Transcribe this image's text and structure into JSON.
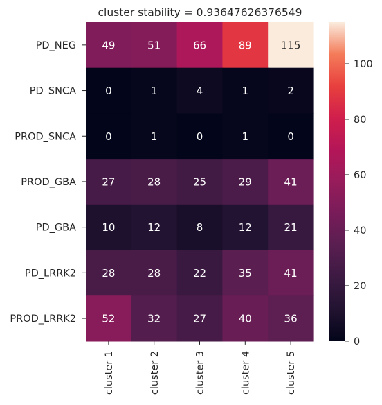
{
  "chart_data": {
    "type": "heatmap",
    "title": "cluster stability = 0.93647626376549",
    "rows": [
      "PD_NEG",
      "PD_SNCA",
      "PROD_SNCA",
      "PROD_GBA",
      "PD_GBA",
      "PD_LRRK2",
      "PROD_LRRK2"
    ],
    "columns": [
      "cluster 1",
      "cluster 2",
      "cluster 3",
      "cluster 4",
      "cluster 5"
    ],
    "values": [
      [
        49,
        51,
        66,
        89,
        115
      ],
      [
        0,
        1,
        4,
        1,
        2
      ],
      [
        0,
        1,
        0,
        1,
        0
      ],
      [
        27,
        28,
        25,
        29,
        41
      ],
      [
        10,
        12,
        8,
        12,
        21
      ],
      [
        28,
        28,
        22,
        35,
        41
      ],
      [
        52,
        32,
        27,
        40,
        36
      ]
    ],
    "colorbar": {
      "min": 0,
      "max": 115,
      "ticks": [
        0,
        20,
        40,
        60,
        80,
        100
      ],
      "colormap": "rocket"
    },
    "xlabel": "",
    "ylabel": ""
  }
}
